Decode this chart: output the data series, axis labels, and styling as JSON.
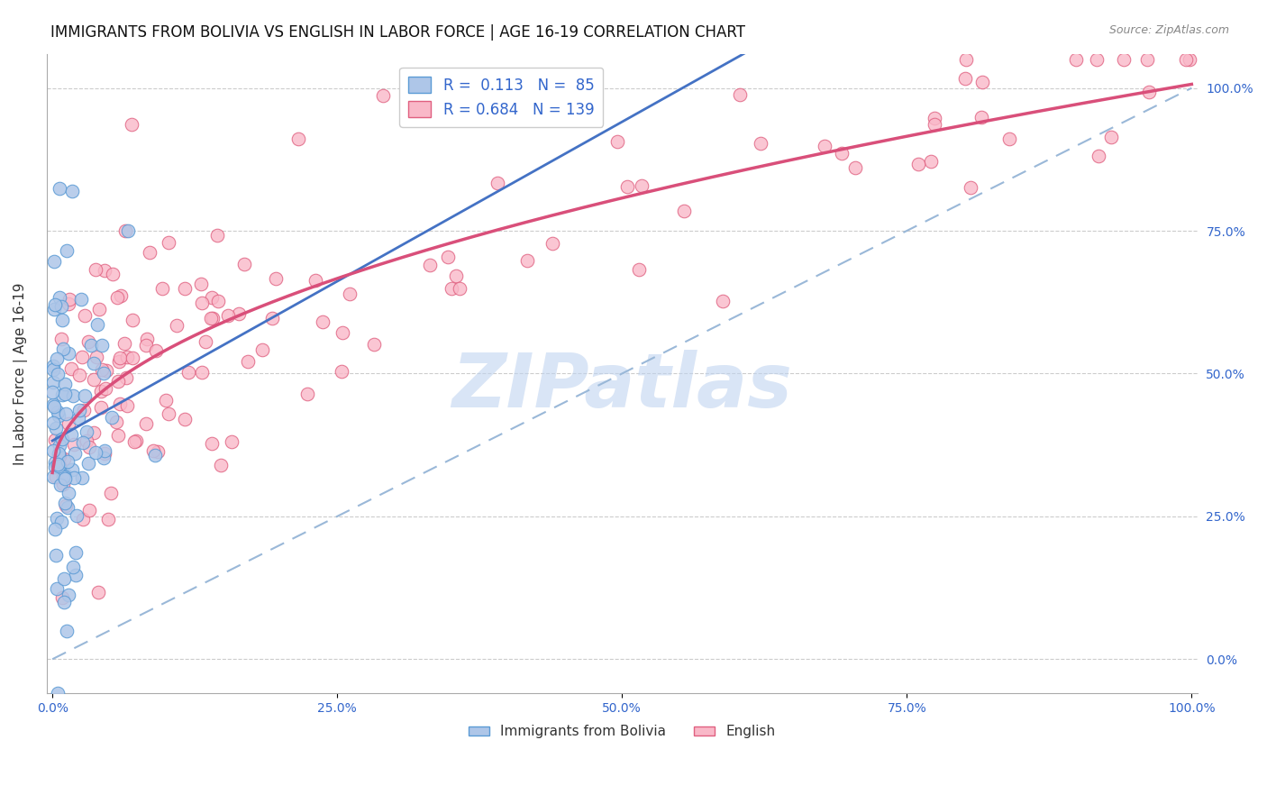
{
  "title": "IMMIGRANTS FROM BOLIVIA VS ENGLISH IN LABOR FORCE | AGE 16-19 CORRELATION CHART",
  "source_text": "Source: ZipAtlas.com",
  "ylabel": "In Labor Force | Age 16-19",
  "bolivia_R": 0.113,
  "bolivia_N": 85,
  "english_R": 0.684,
  "english_N": 139,
  "bolivia_color": "#aec6e8",
  "bolivia_edge_color": "#5b9bd5",
  "english_color": "#f9b8c8",
  "english_edge_color": "#e06080",
  "bolivia_line_color": "#4472c4",
  "english_line_color": "#d94f7a",
  "diagonal_line_color": "#9ab8d8",
  "background_color": "#ffffff",
  "title_fontsize": 12,
  "axis_label_fontsize": 11,
  "tick_fontsize": 10,
  "legend_fontsize": 12,
  "watermark_text": "ZIPatlas",
  "watermark_color": "#c0d4f0",
  "watermark_fontsize": 60,
  "x_tick_vals": [
    0.0,
    0.25,
    0.5,
    0.75,
    1.0
  ],
  "x_tick_labels": [
    "0.0%",
    "25.0%",
    "50.0%",
    "75.0%",
    "100.0%"
  ],
  "y_tick_vals": [
    0.0,
    0.25,
    0.5,
    0.75,
    1.0
  ],
  "y_tick_labels": [
    "0.0%",
    "25.0%",
    "50.0%",
    "75.0%",
    "100.0%"
  ]
}
